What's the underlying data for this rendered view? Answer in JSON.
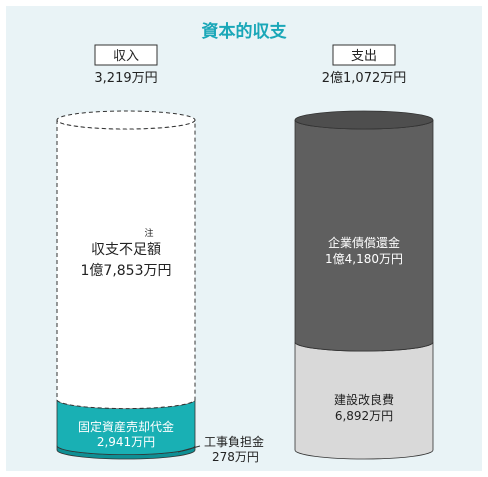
{
  "chart_data": {
    "type": "bar",
    "title": "資本的収支",
    "unit": "万円",
    "columns": [
      {
        "name": "収入",
        "total_label": "3,219万円",
        "total_value": 3219,
        "segments": [
          {
            "name": "工事負担金",
            "value": 278,
            "value_label": "278万円",
            "color": "#0f8f94"
          },
          {
            "name": "固定資産売却代金",
            "value": 2941,
            "value_label": "2,941万円",
            "color": "#19b0b4"
          },
          {
            "name": "収支不足額",
            "value": 17853,
            "value_label": "1億7,853万円",
            "color": "#ffffff",
            "note_mark": "注",
            "style": "dashed"
          }
        ]
      },
      {
        "name": "支出",
        "total_label": "2億1,072万円",
        "total_value": 21072,
        "segments": [
          {
            "name": "建設改良費",
            "value": 6892,
            "value_label": "6,892万円",
            "color": "#d9d9d9"
          },
          {
            "name": "企業債償還金",
            "value": 14180,
            "value_label": "1億4,180万円",
            "color": "#5f5f5f"
          }
        ]
      }
    ]
  },
  "colors": {
    "background": "#e9f3f6",
    "title": "#1aa7b8",
    "dark_segment_text": "#ffffff",
    "outline": "#333333"
  }
}
